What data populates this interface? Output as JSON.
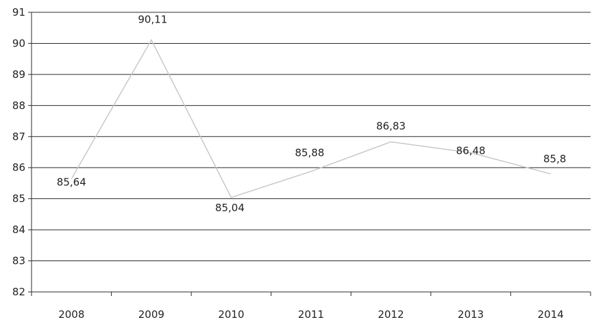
{
  "chart_data": {
    "type": "line",
    "title": "",
    "xlabel": "",
    "ylabel": "",
    "categories": [
      "2008",
      "2009",
      "2010",
      "2011",
      "2012",
      "2013",
      "2014"
    ],
    "series": [
      {
        "values": [
          85.64,
          90.11,
          85.04,
          85.88,
          86.83,
          86.48,
          85.8
        ],
        "labels": [
          "85,64",
          "90,11",
          "85,04",
          "85,88",
          "86,83",
          "86,48",
          "85,8"
        ],
        "color": "#c8c8c8"
      }
    ],
    "ylim": [
      82,
      91
    ],
    "yticks": [
      "82",
      "83",
      "84",
      "85",
      "86",
      "87",
      "88",
      "89",
      "90",
      "91"
    ],
    "grid": true,
    "legend": "none"
  }
}
